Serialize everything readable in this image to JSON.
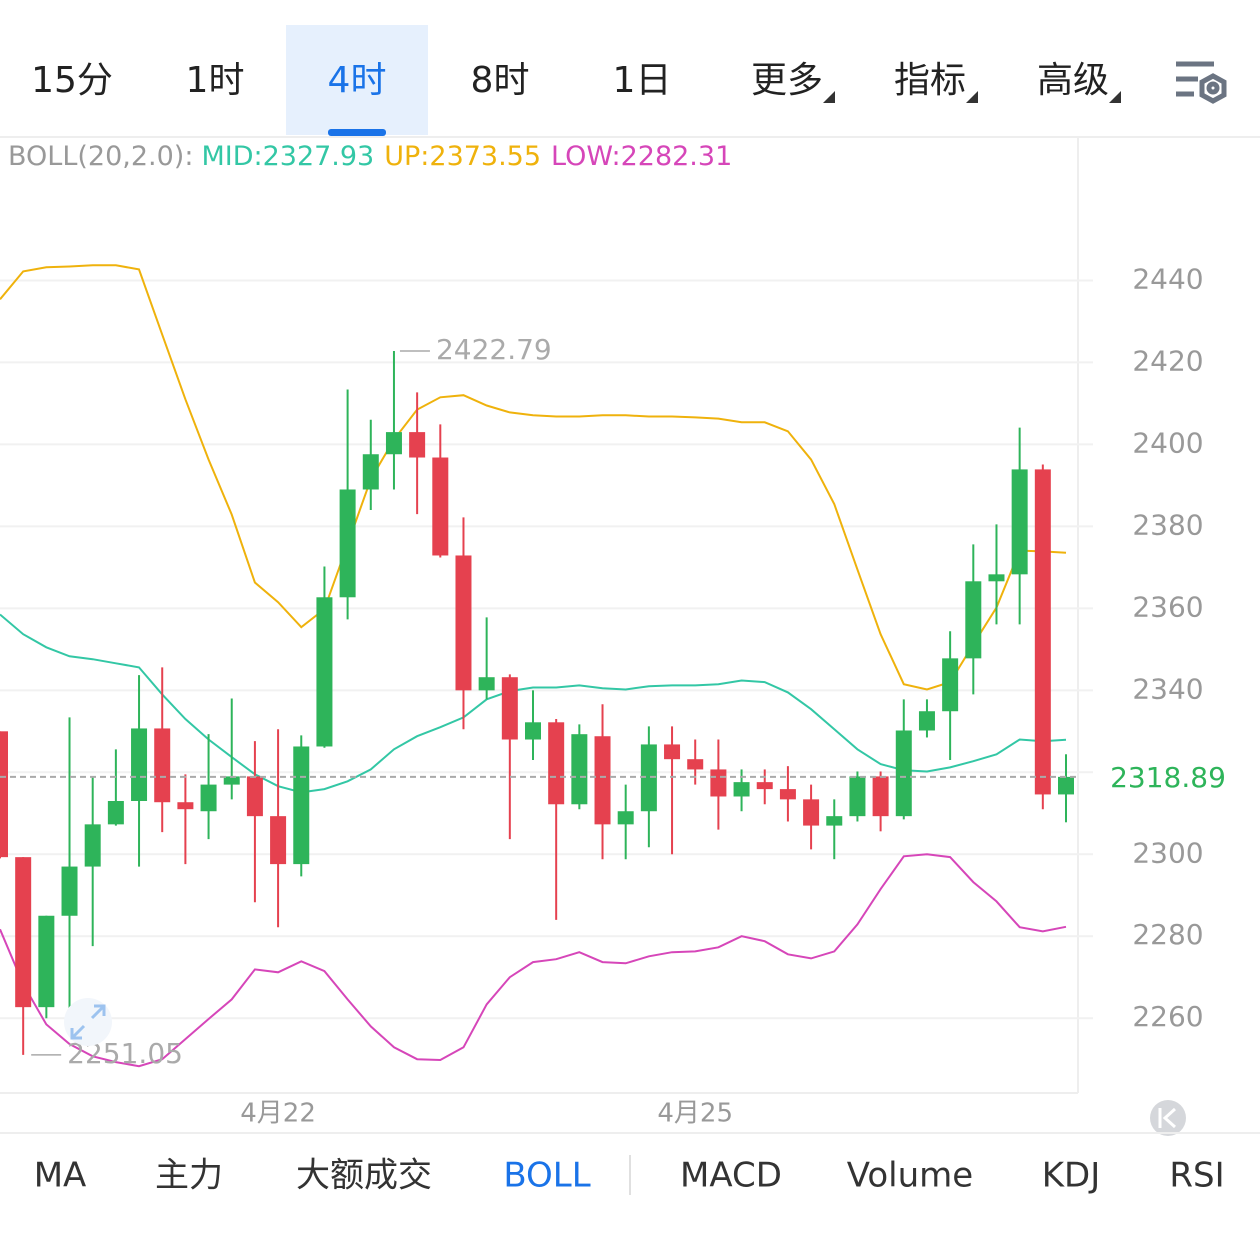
{
  "top_tabs": [
    {
      "label": "15分"
    },
    {
      "label": "1时"
    },
    {
      "label": "4时",
      "selected": true
    },
    {
      "label": "8时"
    },
    {
      "label": "1日"
    },
    {
      "label": "更多",
      "dropdown": true
    },
    {
      "label": "指标",
      "dropdown": true
    },
    {
      "label": "高级",
      "dropdown": true
    }
  ],
  "chart_data": {
    "type": "candlestick",
    "indicator_label": "BOLL(20,2.0):",
    "categories": [
      null,
      null,
      null,
      null,
      null,
      null,
      null,
      null,
      null,
      null,
      null,
      null,
      "4月22",
      null,
      null,
      null,
      null,
      null,
      null,
      null,
      null,
      null,
      null,
      null,
      null,
      null,
      null,
      null,
      null,
      null,
      "4月25",
      null,
      null,
      null,
      null,
      null,
      null,
      null,
      null,
      null,
      null,
      null,
      null,
      null,
      null,
      null,
      null
    ],
    "open": [
      2330,
      2299.3,
      2262.7,
      2285,
      2297,
      2307.3,
      2313,
      2330.7,
      2312.7,
      2310.5,
      2317,
      2319,
      2309.3,
      2297.6,
      2326.3,
      2362.7,
      2389,
      2397.6,
      2403,
      2396.8,
      2372.9,
      2340,
      2343.2,
      2328,
      2332.2,
      2312.2,
      2328.8,
      2307.3,
      2310.5,
      2326.8,
      2323.2,
      2320.7,
      2314.1,
      2317.6,
      2315.9,
      2313.4,
      2307,
      2309.3,
      2319,
      2309.3,
      2330.2,
      2334.9,
      2347.8,
      2366.6,
      2368.3,
      2393.9,
      2314.6
    ],
    "high": [
      2330,
      2299.3,
      2285,
      2333.4,
      2318.8,
      2325.6,
      2343.7,
      2345.6,
      2319.5,
      2329.3,
      2338,
      2327.6,
      2330.5,
      2329,
      2370.2,
      2413.4,
      2406,
      2422.79,
      2412.7,
      2404.9,
      2382.2,
      2357.8,
      2343.9,
      2340,
      2333,
      2331.7,
      2336.6,
      2317,
      2331.2,
      2331.2,
      2328,
      2328,
      2320.7,
      2320.7,
      2321.5,
      2317,
      2313.4,
      2320.2,
      2320.2,
      2337.8,
      2337.8,
      2354.4,
      2375.6,
      2380.5,
      2404.1,
      2395.1,
      2324.4
    ],
    "low": [
      2299,
      2251.05,
      2260,
      2262,
      2277.6,
      2307,
      2297,
      2305.4,
      2297.6,
      2303.7,
      2313.4,
      2288.3,
      2282.2,
      2294.6,
      2326,
      2357.3,
      2384,
      2389,
      2383,
      2372.4,
      2330.5,
      2337.8,
      2303.7,
      2323,
      2284,
      2311,
      2298.8,
      2298.8,
      2301.7,
      2300,
      2317,
      2306,
      2310.5,
      2312.2,
      2308,
      2301.2,
      2298.8,
      2308,
      2305.6,
      2308.5,
      2328.5,
      2323,
      2339,
      2356.1,
      2356.1,
      2311,
      2307.8
    ],
    "close": [
      2299.3,
      2262.7,
      2285,
      2297,
      2307.3,
      2313,
      2330.7,
      2312.7,
      2311,
      2317,
      2319,
      2309.3,
      2297.6,
      2326.3,
      2362.7,
      2389,
      2397.6,
      2403,
      2396.8,
      2372.9,
      2340,
      2343.2,
      2328,
      2332.2,
      2312.2,
      2329.3,
      2307.3,
      2310.5,
      2326.8,
      2323.2,
      2320.7,
      2314.1,
      2317.6,
      2315.9,
      2313.4,
      2307,
      2309.3,
      2319,
      2309.3,
      2330.2,
      2334.9,
      2347.8,
      2366.6,
      2368.3,
      2393.9,
      2314.6,
      2318.89
    ],
    "up_color": "#2eb45a",
    "down_color": "#e5414f",
    "bands": [
      {
        "legend": "MID:2327.93",
        "color": "#33c7a5",
        "values": [
          2358.5,
          2353.7,
          2350.5,
          2348.3,
          2347.6,
          2346.6,
          2345.6,
          2339.0,
          2333.0,
          2328.0,
          2323.7,
          2319.5,
          2316.6,
          2315.1,
          2315.9,
          2317.8,
          2320.7,
          2325.6,
          2328.8,
          2331.0,
          2333.4,
          2337.8,
          2339.8,
          2340.7,
          2340.7,
          2341.2,
          2340.5,
          2340.2,
          2341.0,
          2341.2,
          2341.2,
          2341.5,
          2342.4,
          2342.0,
          2339.5,
          2335.4,
          2330.5,
          2325.6,
          2322.0,
          2320.5,
          2320.2,
          2321.2,
          2322.7,
          2324.4,
          2328.0,
          2327.6,
          2327.93
        ]
      },
      {
        "legend": "UP:2373.55",
        "color": "#efb20c",
        "values": [
          2435.4,
          2442.2,
          2443.2,
          2443.4,
          2443.7,
          2443.7,
          2442.7,
          2426.8,
          2411.0,
          2396.3,
          2382.9,
          2366.3,
          2361.5,
          2355.4,
          2359.8,
          2375.6,
          2391.5,
          2401.2,
          2408.5,
          2411.5,
          2412.0,
          2409.5,
          2407.8,
          2407.1,
          2406.8,
          2406.8,
          2407.1,
          2407.1,
          2406.8,
          2406.8,
          2406.6,
          2406.3,
          2405.4,
          2405.4,
          2403.2,
          2396.3,
          2385.4,
          2369.5,
          2353.7,
          2341.5,
          2340.2,
          2342.0,
          2351.2,
          2360.2,
          2374.1,
          2373.9,
          2373.55
        ]
      },
      {
        "legend": "LOW:2282.31",
        "color": "#d646b9",
        "values": [
          2281.7,
          2268.3,
          2258.5,
          2253.7,
          2250.7,
          2249.3,
          2248.3,
          2250.0,
          2254.9,
          2259.8,
          2264.6,
          2271.9,
          2271.2,
          2273.9,
          2271.5,
          2264.6,
          2258.0,
          2252.9,
          2250.0,
          2249.8,
          2252.9,
          2263.4,
          2270.0,
          2273.7,
          2274.4,
          2276.1,
          2273.7,
          2273.4,
          2275.1,
          2276.1,
          2276.3,
          2277.3,
          2280.0,
          2278.8,
          2275.6,
          2274.6,
          2276.3,
          2282.9,
          2291.5,
          2299.5,
          2300.0,
          2299.3,
          2293.2,
          2288.5,
          2282.2,
          2281.2,
          2282.31
        ]
      }
    ],
    "max_label": {
      "value": 2422.79,
      "label": "2422.79"
    },
    "min_label": {
      "value": 2251.05,
      "label": "2251.05"
    },
    "last_price": 2318.89,
    "ylim": [
      2242,
      2475
    ],
    "yticks": [
      2260,
      2280,
      2300,
      2320,
      2340,
      2360,
      2380,
      2400,
      2420,
      2440
    ],
    "grid": true
  },
  "bottom_tabs": [
    {
      "label": "MA"
    },
    {
      "label": "主力"
    },
    {
      "label": "大额成交"
    },
    {
      "label": "BOLL",
      "selected": true
    },
    {
      "label": "MACD"
    },
    {
      "label": "Volume"
    },
    {
      "label": "KDJ"
    },
    {
      "label": "RSI"
    }
  ]
}
